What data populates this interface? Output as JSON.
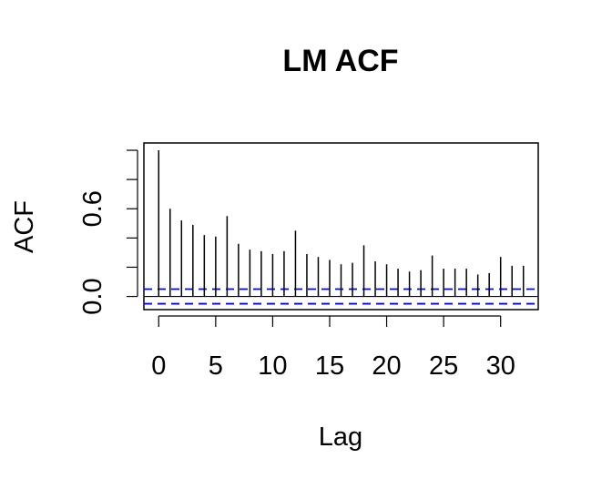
{
  "chart_data": {
    "type": "bar",
    "title": "LM ACF",
    "xlabel": "Lag",
    "ylabel": "ACF",
    "x": [
      0,
      1,
      2,
      3,
      4,
      5,
      6,
      7,
      8,
      9,
      10,
      11,
      12,
      13,
      14,
      15,
      16,
      17,
      18,
      19,
      20,
      21,
      22,
      23,
      24,
      25,
      26,
      27,
      28,
      29,
      30,
      31,
      32
    ],
    "values": [
      1.0,
      0.6,
      0.52,
      0.49,
      0.42,
      0.41,
      0.55,
      0.36,
      0.32,
      0.31,
      0.29,
      0.31,
      0.45,
      0.29,
      0.27,
      0.25,
      0.22,
      0.23,
      0.35,
      0.24,
      0.22,
      0.19,
      0.17,
      0.18,
      0.28,
      0.19,
      0.19,
      0.19,
      0.15,
      0.16,
      0.27,
      0.21,
      0.21
    ],
    "conf_band": [
      0.05,
      -0.05
    ],
    "xlim": [
      -1.3,
      33.3
    ],
    "ylim": [
      -0.09,
      1.05
    ],
    "xticks": [
      0,
      5,
      10,
      15,
      20,
      25,
      30
    ],
    "yticks": [
      0.0,
      0.2,
      0.4,
      0.6,
      0.8,
      1.0
    ],
    "ytick_labels": [
      "0.0",
      "",
      "",
      "0.6",
      "",
      ""
    ],
    "colors": {
      "bars": "#000000",
      "conf_band": "#0000ff",
      "zero_line": "#000000"
    }
  }
}
